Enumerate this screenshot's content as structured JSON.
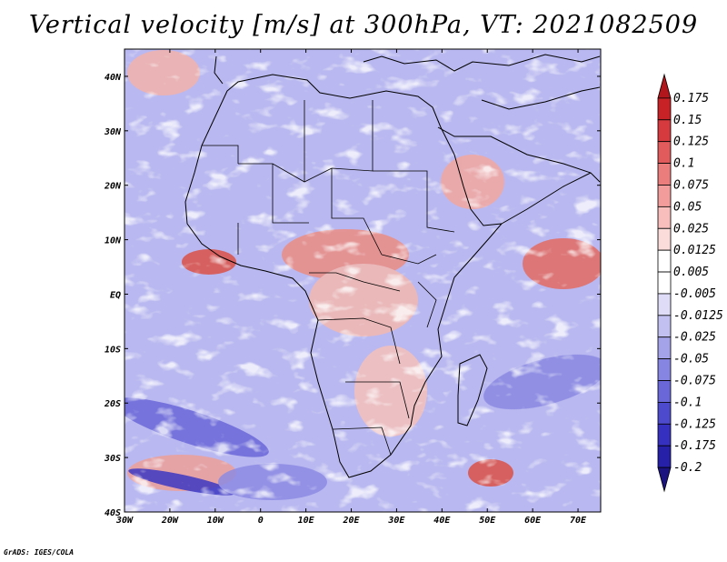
{
  "title": "Vertical velocity [m/s] at 300hPa, VT: 2021082509",
  "footer": "GrADS: IGES/COLA",
  "map": {
    "lon_range": [
      -30,
      75
    ],
    "lat_range": [
      -40,
      45
    ],
    "lon_ticks": [
      "30W",
      "20W",
      "10W",
      "0",
      "10E",
      "20E",
      "30E",
      "40E",
      "50E",
      "60E",
      "70E"
    ],
    "lat_ticks": [
      "40N",
      "30N",
      "20N",
      "10N",
      "EQ",
      "10S",
      "20S",
      "30S",
      "40S"
    ]
  },
  "colorbar": {
    "labels": [
      "0.175",
      "0.15",
      "0.125",
      "0.1",
      "0.075",
      "0.05",
      "0.025",
      "0.0125",
      "0.005",
      "-0.005",
      "-0.0125",
      "-0.025",
      "-0.05",
      "-0.075",
      "-0.1",
      "-0.125",
      "-0.175",
      "-0.2"
    ],
    "colors": [
      "#b0161b",
      "#c82126",
      "#d63a3e",
      "#e15a5c",
      "#ec7d7d",
      "#f29d9b",
      "#f7bebb",
      "#fbdcda",
      "#ffffff",
      "#ffffff",
      "#dedcf7",
      "#c1c0f1",
      "#a4a3ea",
      "#8785e2",
      "#6a67d8",
      "#4e4ace",
      "#3530bf",
      "#2620a8",
      "#1b1480"
    ]
  }
}
